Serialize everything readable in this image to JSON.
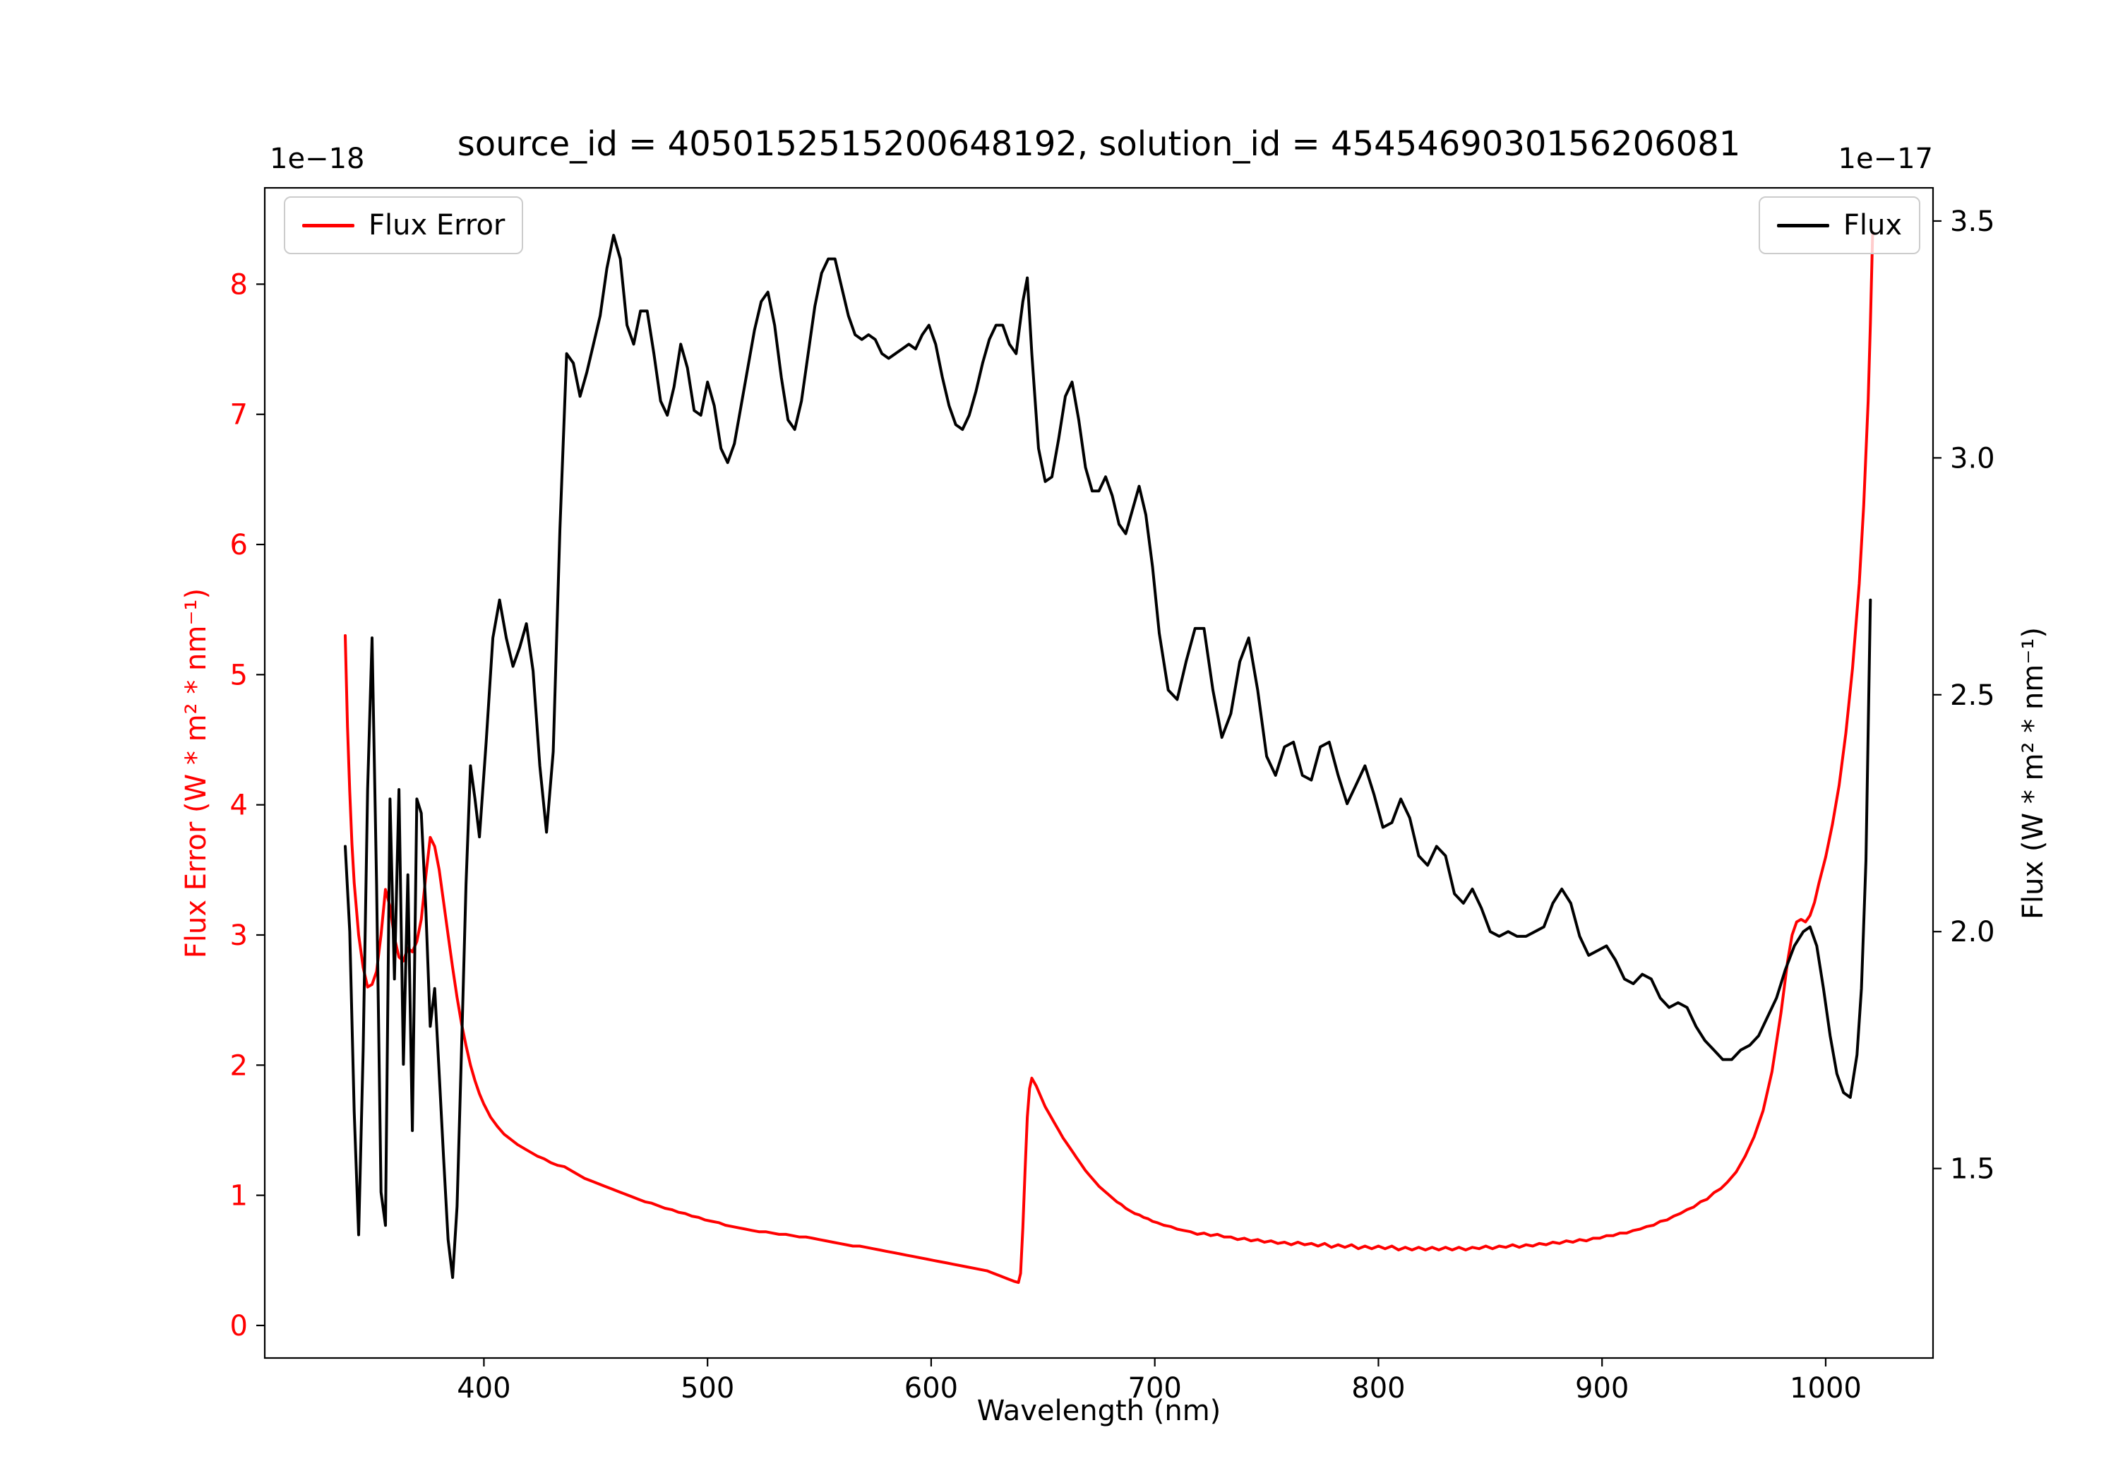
{
  "chart_data": {
    "type": "line",
    "title": "source_id = 4050152515200648192, solution_id = 4545469030156206081",
    "xlabel": "Wavelength (nm)",
    "ylabel_left": "Flux Error (W * m² * nm⁻¹)",
    "ylabel_right": "Flux (W * m² * nm⁻¹)",
    "offset_left": "1e−18",
    "offset_right": "1e−17",
    "xlim": [
      302,
      1048
    ],
    "ylim_left": [
      -0.25,
      8.74
    ],
    "ylim_right": [
      1.1,
      3.57
    ],
    "grid": false,
    "xticks": [
      400,
      500,
      600,
      700,
      800,
      900,
      1000
    ],
    "xtick_labels": [
      "400",
      "500",
      "600",
      "700",
      "800",
      "900",
      "1000"
    ],
    "yticks_left": [
      0,
      1,
      2,
      3,
      4,
      5,
      6,
      7,
      8
    ],
    "ytick_labels_left": [
      "0",
      "1",
      "2",
      "3",
      "4",
      "5",
      "6",
      "7",
      "8"
    ],
    "yticks_right": [
      1.5,
      2.0,
      2.5,
      3.0,
      3.5
    ],
    "ytick_labels_right": [
      "1.5",
      "2.0",
      "2.5",
      "3.0",
      "3.5"
    ],
    "legend_left": {
      "label": "Flux Error",
      "position": "upper left"
    },
    "legend_right": {
      "label": "Flux",
      "position": "upper right"
    },
    "series": [
      {
        "name": "Flux Error",
        "color": "#ff0000",
        "axis": "left",
        "units_scale": "1e-18",
        "x": [
          338,
          339,
          340,
          341,
          342,
          344,
          346,
          348,
          350,
          352,
          354,
          356,
          358,
          360,
          362,
          364,
          366,
          368,
          370,
          372,
          374,
          376,
          378,
          380,
          382,
          384,
          386,
          388,
          390,
          392,
          394,
          396,
          398,
          400,
          403,
          406,
          409,
          412,
          415,
          418,
          421,
          424,
          427,
          430,
          433,
          436,
          439,
          442,
          445,
          448,
          451,
          454,
          457,
          460,
          463,
          466,
          469,
          472,
          475,
          478,
          481,
          484,
          487,
          490,
          493,
          496,
          499,
          502,
          505,
          508,
          511,
          514,
          517,
          520,
          523,
          526,
          529,
          532,
          535,
          538,
          541,
          544,
          547,
          550,
          553,
          556,
          559,
          562,
          565,
          568,
          571,
          574,
          577,
          580,
          583,
          586,
          589,
          592,
          595,
          598,
          601,
          604,
          607,
          610,
          613,
          616,
          619,
          622,
          625,
          628,
          631,
          634,
          637,
          639,
          640,
          641,
          642,
          643,
          644,
          645,
          647,
          649,
          651,
          653,
          655,
          657,
          659,
          661,
          663,
          665,
          667,
          669,
          671,
          673,
          675,
          677,
          679,
          681,
          683,
          685,
          687,
          689,
          691,
          693,
          695,
          697,
          699,
          701,
          704,
          707,
          710,
          713,
          716,
          719,
          722,
          725,
          728,
          731,
          734,
          737,
          740,
          743,
          746,
          749,
          752,
          755,
          758,
          761,
          764,
          767,
          770,
          773,
          776,
          779,
          782,
          785,
          788,
          791,
          794,
          797,
          800,
          803,
          806,
          809,
          812,
          815,
          818,
          821,
          824,
          827,
          830,
          833,
          836,
          839,
          842,
          845,
          848,
          851,
          854,
          857,
          860,
          863,
          866,
          869,
          872,
          875,
          878,
          881,
          884,
          887,
          890,
          893,
          896,
          899,
          902,
          905,
          908,
          911,
          914,
          917,
          920,
          923,
          926,
          929,
          932,
          935,
          938,
          941,
          944,
          947,
          950,
          953,
          956,
          960,
          964,
          968,
          972,
          976,
          980,
          983,
          985,
          987,
          989,
          991,
          993,
          995,
          997,
          1000,
          1003,
          1006,
          1009,
          1012,
          1015,
          1017,
          1019,
          1020,
          1021
        ],
        "y": [
          5.3,
          4.6,
          4.1,
          3.7,
          3.4,
          3.0,
          2.75,
          2.6,
          2.62,
          2.72,
          3.0,
          3.35,
          3.22,
          2.98,
          2.83,
          2.8,
          2.9,
          2.87,
          2.95,
          3.12,
          3.45,
          3.75,
          3.68,
          3.5,
          3.25,
          3.0,
          2.75,
          2.52,
          2.32,
          2.15,
          2.0,
          1.88,
          1.78,
          1.7,
          1.6,
          1.53,
          1.47,
          1.43,
          1.39,
          1.36,
          1.33,
          1.3,
          1.28,
          1.25,
          1.23,
          1.22,
          1.19,
          1.16,
          1.13,
          1.11,
          1.09,
          1.07,
          1.05,
          1.03,
          1.01,
          0.99,
          0.97,
          0.95,
          0.94,
          0.92,
          0.9,
          0.89,
          0.87,
          0.86,
          0.84,
          0.83,
          0.81,
          0.8,
          0.79,
          0.77,
          0.76,
          0.75,
          0.74,
          0.73,
          0.72,
          0.72,
          0.71,
          0.7,
          0.7,
          0.69,
          0.68,
          0.68,
          0.67,
          0.66,
          0.65,
          0.64,
          0.63,
          0.62,
          0.61,
          0.61,
          0.6,
          0.59,
          0.58,
          0.57,
          0.56,
          0.55,
          0.54,
          0.53,
          0.52,
          0.51,
          0.5,
          0.49,
          0.48,
          0.47,
          0.46,
          0.45,
          0.44,
          0.43,
          0.42,
          0.4,
          0.38,
          0.36,
          0.34,
          0.33,
          0.4,
          0.75,
          1.2,
          1.6,
          1.82,
          1.9,
          1.84,
          1.76,
          1.68,
          1.62,
          1.56,
          1.5,
          1.44,
          1.39,
          1.34,
          1.29,
          1.24,
          1.19,
          1.15,
          1.11,
          1.07,
          1.04,
          1.01,
          0.98,
          0.95,
          0.93,
          0.9,
          0.88,
          0.86,
          0.85,
          0.83,
          0.82,
          0.8,
          0.79,
          0.77,
          0.76,
          0.74,
          0.73,
          0.72,
          0.7,
          0.71,
          0.69,
          0.7,
          0.68,
          0.68,
          0.66,
          0.67,
          0.65,
          0.66,
          0.64,
          0.65,
          0.63,
          0.64,
          0.62,
          0.64,
          0.62,
          0.63,
          0.61,
          0.63,
          0.6,
          0.62,
          0.6,
          0.62,
          0.59,
          0.61,
          0.59,
          0.61,
          0.59,
          0.61,
          0.58,
          0.6,
          0.58,
          0.6,
          0.58,
          0.6,
          0.58,
          0.6,
          0.58,
          0.6,
          0.58,
          0.6,
          0.59,
          0.61,
          0.59,
          0.61,
          0.6,
          0.62,
          0.6,
          0.62,
          0.61,
          0.63,
          0.62,
          0.64,
          0.63,
          0.65,
          0.64,
          0.66,
          0.65,
          0.67,
          0.67,
          0.69,
          0.69,
          0.71,
          0.71,
          0.73,
          0.74,
          0.76,
          0.77,
          0.8,
          0.81,
          0.84,
          0.86,
          0.89,
          0.91,
          0.95,
          0.97,
          1.02,
          1.05,
          1.1,
          1.18,
          1.3,
          1.45,
          1.65,
          1.95,
          2.4,
          2.8,
          3.0,
          3.1,
          3.12,
          3.1,
          3.15,
          3.25,
          3.4,
          3.6,
          3.85,
          4.15,
          4.55,
          5.05,
          5.7,
          6.3,
          7.1,
          7.7,
          8.4
        ]
      },
      {
        "name": "Flux",
        "color": "#000000",
        "axis": "right",
        "units_scale": "1e-17",
        "x": [
          338,
          340,
          342,
          344,
          346,
          348,
          350,
          352,
          354,
          356,
          358,
          360,
          362,
          364,
          366,
          368,
          370,
          372,
          374,
          376,
          378,
          380,
          382,
          384,
          386,
          388,
          390,
          392,
          394,
          396,
          398,
          401,
          404,
          407,
          410,
          413,
          416,
          419,
          422,
          425,
          428,
          431,
          434,
          437,
          440,
          443,
          446,
          449,
          452,
          455,
          458,
          461,
          464,
          467,
          470,
          473,
          476,
          479,
          482,
          485,
          488,
          491,
          494,
          497,
          500,
          503,
          506,
          509,
          512,
          515,
          518,
          521,
          524,
          527,
          530,
          533,
          536,
          539,
          542,
          545,
          548,
          551,
          554,
          557,
          560,
          563,
          566,
          569,
          572,
          575,
          578,
          581,
          584,
          587,
          590,
          593,
          596,
          599,
          602,
          605,
          608,
          611,
          614,
          617,
          620,
          623,
          626,
          629,
          632,
          635,
          638,
          641,
          643,
          645,
          648,
          651,
          654,
          657,
          660,
          663,
          666,
          669,
          672,
          675,
          678,
          681,
          684,
          687,
          690,
          693,
          696,
          699,
          702,
          706,
          710,
          714,
          718,
          722,
          726,
          730,
          734,
          738,
          742,
          746,
          750,
          754,
          758,
          762,
          766,
          770,
          774,
          778,
          782,
          786,
          790,
          794,
          798,
          802,
          806,
          810,
          814,
          818,
          822,
          826,
          830,
          834,
          838,
          842,
          846,
          850,
          854,
          858,
          862,
          866,
          870,
          874,
          878,
          882,
          886,
          890,
          894,
          898,
          902,
          906,
          910,
          914,
          918,
          922,
          926,
          930,
          934,
          938,
          942,
          946,
          950,
          954,
          958,
          962,
          966,
          970,
          974,
          978,
          982,
          986,
          990,
          993,
          996,
          999,
          1002,
          1005,
          1008,
          1011,
          1014,
          1016,
          1018,
          1020
        ],
        "y": [
          2.18,
          2.0,
          1.62,
          1.36,
          1.75,
          2.3,
          2.62,
          2.1,
          1.45,
          1.38,
          2.28,
          1.9,
          2.3,
          1.72,
          2.12,
          1.58,
          2.28,
          2.25,
          2.05,
          1.8,
          1.88,
          1.7,
          1.52,
          1.35,
          1.27,
          1.42,
          1.75,
          2.1,
          2.35,
          2.28,
          2.2,
          2.4,
          2.62,
          2.7,
          2.62,
          2.56,
          2.6,
          2.65,
          2.55,
          2.35,
          2.21,
          2.38,
          2.85,
          3.22,
          3.2,
          3.13,
          3.18,
          3.24,
          3.3,
          3.4,
          3.47,
          3.42,
          3.28,
          3.24,
          3.31,
          3.31,
          3.22,
          3.12,
          3.09,
          3.15,
          3.24,
          3.19,
          3.1,
          3.09,
          3.16,
          3.11,
          3.02,
          2.99,
          3.03,
          3.11,
          3.19,
          3.27,
          3.33,
          3.35,
          3.28,
          3.17,
          3.08,
          3.06,
          3.12,
          3.22,
          3.32,
          3.39,
          3.42,
          3.42,
          3.36,
          3.3,
          3.26,
          3.25,
          3.26,
          3.25,
          3.22,
          3.21,
          3.22,
          3.23,
          3.24,
          3.23,
          3.26,
          3.28,
          3.24,
          3.17,
          3.11,
          3.07,
          3.06,
          3.09,
          3.14,
          3.2,
          3.25,
          3.28,
          3.28,
          3.24,
          3.22,
          3.33,
          3.38,
          3.22,
          3.02,
          2.95,
          2.96,
          3.04,
          3.13,
          3.16,
          3.08,
          2.98,
          2.93,
          2.93,
          2.96,
          2.92,
          2.86,
          2.84,
          2.89,
          2.94,
          2.88,
          2.77,
          2.63,
          2.51,
          2.49,
          2.57,
          2.64,
          2.64,
          2.51,
          2.41,
          2.46,
          2.57,
          2.62,
          2.51,
          2.37,
          2.33,
          2.39,
          2.4,
          2.33,
          2.32,
          2.39,
          2.4,
          2.33,
          2.27,
          2.31,
          2.35,
          2.29,
          2.22,
          2.23,
          2.28,
          2.24,
          2.16,
          2.14,
          2.18,
          2.16,
          2.08,
          2.06,
          2.09,
          2.05,
          2.0,
          1.99,
          2.0,
          1.99,
          1.99,
          2.0,
          2.01,
          2.06,
          2.09,
          2.06,
          1.99,
          1.95,
          1.96,
          1.97,
          1.94,
          1.9,
          1.89,
          1.91,
          1.9,
          1.86,
          1.84,
          1.85,
          1.84,
          1.8,
          1.77,
          1.75,
          1.73,
          1.73,
          1.75,
          1.76,
          1.78,
          1.82,
          1.86,
          1.92,
          1.97,
          2.0,
          2.01,
          1.97,
          1.88,
          1.78,
          1.7,
          1.66,
          1.65,
          1.74,
          1.88,
          2.15,
          2.7
        ]
      }
    ]
  }
}
